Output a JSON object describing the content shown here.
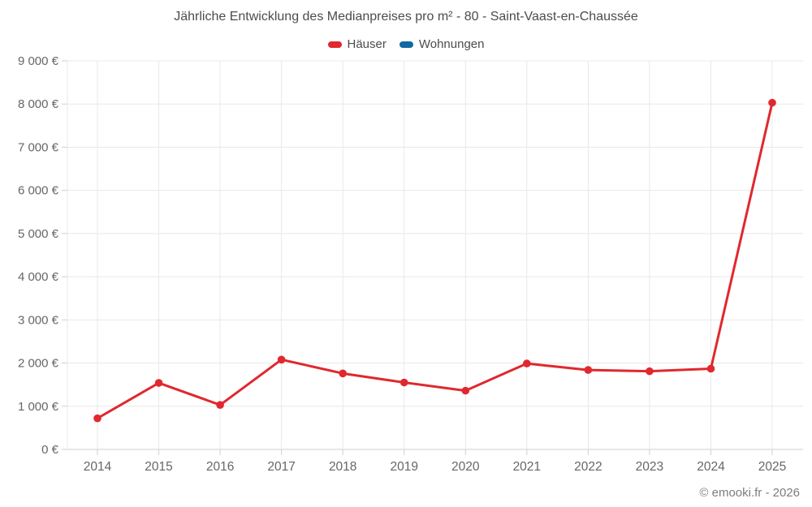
{
  "chart_data": {
    "type": "line",
    "title": "Jährliche Entwicklung des Medianpreises pro m² - 80 - Saint-Vaast-en-Chaussée",
    "categories": [
      "2014",
      "2015",
      "2016",
      "2017",
      "2018",
      "2019",
      "2020",
      "2021",
      "2022",
      "2023",
      "2024",
      "2025"
    ],
    "series": [
      {
        "name": "Häuser",
        "color": "#e0282e",
        "values": [
          720,
          1540,
          1030,
          2080,
          1760,
          1550,
          1360,
          1990,
          1840,
          1810,
          1870,
          8030
        ]
      },
      {
        "name": "Wohnungen",
        "color": "#1069a3",
        "values": []
      }
    ],
    "xlabel": "",
    "ylabel": "",
    "ylim": [
      0,
      9000
    ],
    "y_step": 1000,
    "y_tick_labels": [
      "0 €",
      "1 000 €",
      "2 000 €",
      "3 000 €",
      "4 000 €",
      "5 000 €",
      "6 000 €",
      "7 000 €",
      "8 000 €",
      "9 000 €"
    ],
    "grid": "on",
    "legend_position": "top"
  },
  "footer": {
    "copyright": "© emooki.fr - 2026"
  },
  "colors": {
    "title_text": "#4c4c4c",
    "axis_text": "#666666",
    "grid_line": "#e8e8e8",
    "axis_line": "#cfcfcf",
    "footer_text": "#7d7d7d",
    "background": "#ffffff"
  }
}
